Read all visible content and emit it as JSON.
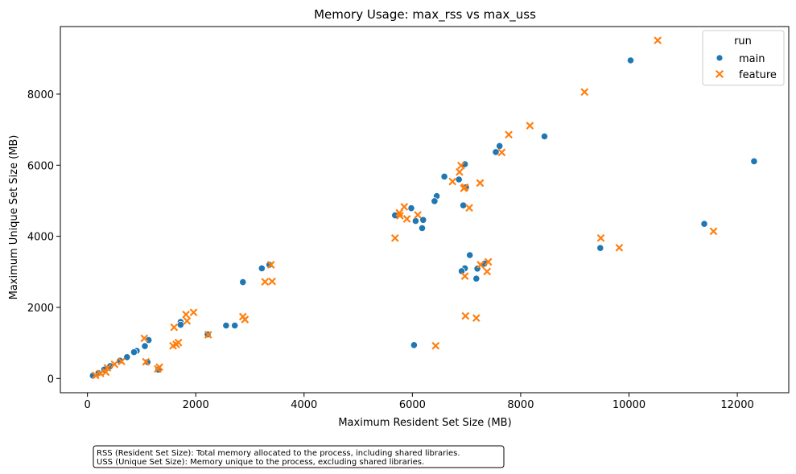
{
  "chart_data": {
    "type": "scatter",
    "title": "Memory Usage: max_rss vs max_uss",
    "xlabel": "Maximum Resident Set Size (MB)",
    "ylabel": "Maximum Unique Set Size (MB)",
    "xlim": [
      -500,
      12950
    ],
    "ylim": [
      -400,
      9900
    ],
    "xticks": [
      0,
      2000,
      4000,
      6000,
      8000,
      10000,
      12000
    ],
    "yticks": [
      0,
      2000,
      4000,
      6000,
      8000
    ],
    "xtick_labels": [
      "0",
      "2000",
      "4000",
      "6000",
      "8000",
      "10000",
      "12000"
    ],
    "ytick_labels": [
      "0",
      "2000",
      "4000",
      "6000",
      "8000"
    ],
    "grid": false,
    "legend": {
      "title": "run",
      "position": "top-right"
    },
    "series": [
      {
        "name": "main",
        "color": "#1f77b4",
        "marker": "circle",
        "points": [
          [
            10030,
            8950
          ],
          [
            12310,
            6110
          ],
          [
            11390,
            4350
          ],
          [
            9470,
            3670
          ],
          [
            8440,
            6810
          ],
          [
            7610,
            6540
          ],
          [
            7540,
            6370
          ],
          [
            6970,
            6030
          ],
          [
            6990,
            5380
          ],
          [
            6860,
            5600
          ],
          [
            6590,
            5680
          ],
          [
            6450,
            5130
          ],
          [
            6410,
            4990
          ],
          [
            6940,
            4870
          ],
          [
            5980,
            4790
          ],
          [
            5680,
            4590
          ],
          [
            6060,
            4430
          ],
          [
            6200,
            4460
          ],
          [
            6180,
            4230
          ],
          [
            7060,
            3470
          ],
          [
            7330,
            3230
          ],
          [
            6970,
            3100
          ],
          [
            7200,
            3090
          ],
          [
            6910,
            3020
          ],
          [
            7180,
            2810
          ],
          [
            6030,
            940
          ],
          [
            3220,
            3100
          ],
          [
            3360,
            3200
          ],
          [
            2870,
            2710
          ],
          [
            2220,
            1240
          ],
          [
            2560,
            1490
          ],
          [
            2720,
            1490
          ],
          [
            1720,
            1590
          ],
          [
            1720,
            1510
          ],
          [
            1130,
            1080
          ],
          [
            1060,
            910
          ],
          [
            910,
            780
          ],
          [
            860,
            740
          ],
          [
            730,
            600
          ],
          [
            600,
            500
          ],
          [
            420,
            350
          ],
          [
            310,
            250
          ],
          [
            200,
            150
          ],
          [
            100,
            80
          ],
          [
            1110,
            460
          ],
          [
            1310,
            250
          ]
        ]
      },
      {
        "name": "feature",
        "color": "#ff7f0e",
        "marker": "x",
        "points": [
          [
            10530,
            9510
          ],
          [
            9180,
            8060
          ],
          [
            8170,
            7110
          ],
          [
            7780,
            6860
          ],
          [
            7650,
            6360
          ],
          [
            6870,
            5810
          ],
          [
            6900,
            5990
          ],
          [
            7250,
            5500
          ],
          [
            6970,
            5380
          ],
          [
            6740,
            5540
          ],
          [
            5850,
            4830
          ],
          [
            6950,
            5350
          ],
          [
            5760,
            4660
          ],
          [
            5770,
            4580
          ],
          [
            5900,
            4490
          ],
          [
            6100,
            4600
          ],
          [
            7050,
            4800
          ],
          [
            5680,
            3950
          ],
          [
            9480,
            3950
          ],
          [
            9820,
            3680
          ],
          [
            11560,
            4140
          ],
          [
            7400,
            3280
          ],
          [
            7380,
            3010
          ],
          [
            7260,
            3200
          ],
          [
            6970,
            2880
          ],
          [
            6980,
            1760
          ],
          [
            7180,
            1700
          ],
          [
            6430,
            920
          ],
          [
            3390,
            3200
          ],
          [
            3280,
            2720
          ],
          [
            3410,
            2730
          ],
          [
            2870,
            1740
          ],
          [
            2910,
            1660
          ],
          [
            1960,
            1860
          ],
          [
            1820,
            1800
          ],
          [
            1840,
            1620
          ],
          [
            1600,
            1440
          ],
          [
            2230,
            1230
          ],
          [
            1680,
            1010
          ],
          [
            1640,
            960
          ],
          [
            1580,
            920
          ],
          [
            1050,
            1130
          ],
          [
            1080,
            470
          ],
          [
            1330,
            320
          ],
          [
            1300,
            270
          ],
          [
            630,
            480
          ],
          [
            500,
            400
          ],
          [
            370,
            300
          ],
          [
            340,
            180
          ],
          [
            240,
            140
          ],
          [
            150,
            90
          ]
        ]
      }
    ],
    "note_lines": [
      "RSS (Resident Set Size): Total memory allocated to the process, including shared libraries.",
      "USS (Unique Set Size): Memory unique to the process, excluding shared libraries."
    ]
  }
}
